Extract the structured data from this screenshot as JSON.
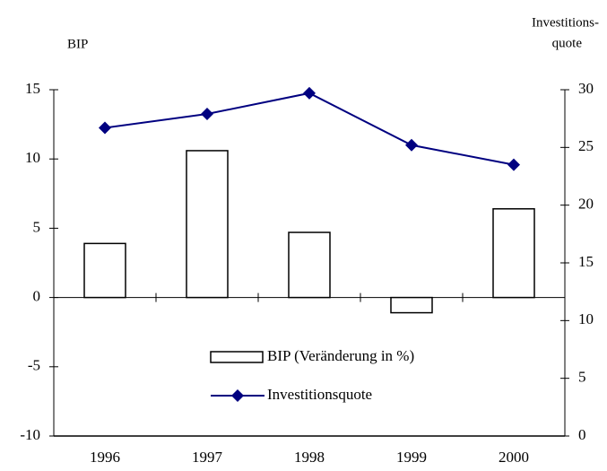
{
  "chart_data": {
    "type": "bar",
    "y_label": "BIP",
    "y2_label": [
      "Investitions-",
      "quote"
    ],
    "categories": [
      "1996",
      "1997",
      "1998",
      "1999",
      "2000"
    ],
    "series": [
      {
        "name": "BIP (Veränderung in %)",
        "type": "bar",
        "color": "#ffffff",
        "values": [
          3.9,
          10.6,
          4.7,
          -1.1,
          6.4
        ]
      },
      {
        "name": "Investitionsquote",
        "type": "line",
        "axis": "y2",
        "color": "#000080",
        "values": [
          26.7,
          27.9,
          29.7,
          25.2,
          23.5
        ]
      }
    ],
    "ylim": [
      -10,
      15
    ],
    "yticks": [
      -10,
      -5,
      0,
      5,
      10,
      15
    ],
    "y2lim": [
      0,
      30
    ],
    "y2ticks": [
      0,
      5,
      10,
      15,
      20,
      25,
      30
    ],
    "grid": false
  }
}
